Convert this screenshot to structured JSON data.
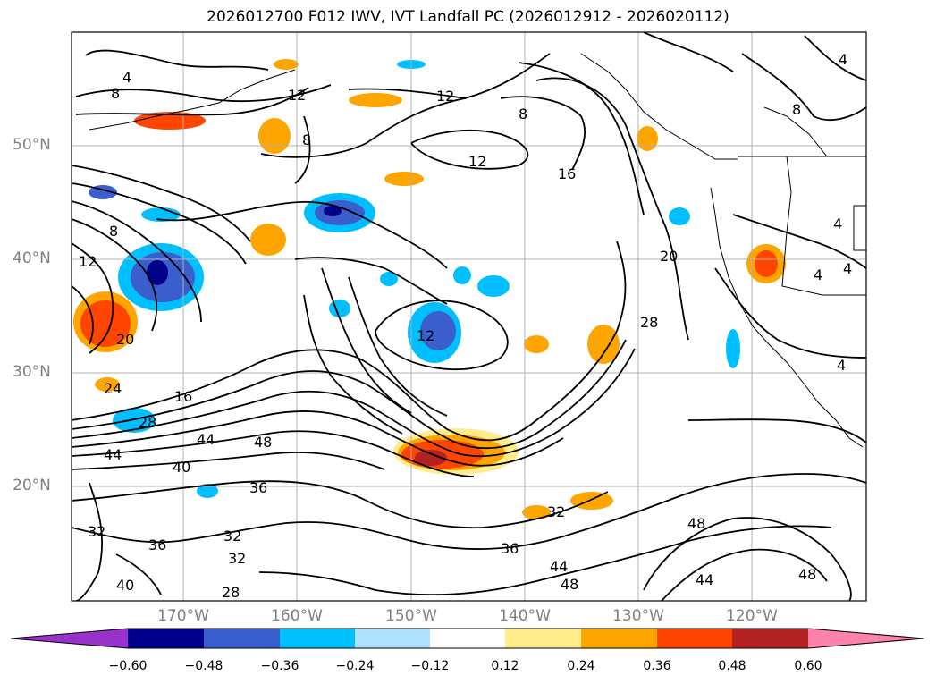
{
  "title": "2026012700 F012 IWV, IVT Landfall PC (2026012912 - 2026020112)",
  "map": {
    "lat_labels": [
      "50°N",
      "40°N",
      "30°N",
      "20°N"
    ],
    "lon_labels": [
      "170°W",
      "160°W",
      "150°W",
      "140°W",
      "130°W",
      "120°W"
    ],
    "contour_labels": [
      "4",
      "8",
      "12",
      "12",
      "8",
      "8",
      "12",
      "16",
      "20",
      "28",
      "8",
      "12",
      "20",
      "24",
      "28",
      "16",
      "12",
      "44",
      "48",
      "44",
      "40",
      "36",
      "32",
      "36",
      "32",
      "32",
      "40",
      "28",
      "36",
      "32",
      "44",
      "48",
      "48",
      "44",
      "48",
      "4",
      "8",
      "4",
      "4",
      "4",
      "4"
    ]
  },
  "colorbar": {
    "tick_labels": [
      "−0.60",
      "−0.48",
      "−0.36",
      "−0.24",
      "−0.12",
      "0.12",
      "0.24",
      "0.36",
      "0.48",
      "0.60"
    ],
    "colors": [
      "#9932cc",
      "#00008b",
      "#3a5fcd",
      "#00bfff",
      "#b0e2ff",
      "#ffffff",
      "#ffec8b",
      "#ffa500",
      "#ff4500",
      "#b22222",
      "#ff82ab"
    ]
  },
  "colors": {
    "grid": "#b0b0b0",
    "contour": "#000000",
    "axis_text": "#808080"
  }
}
